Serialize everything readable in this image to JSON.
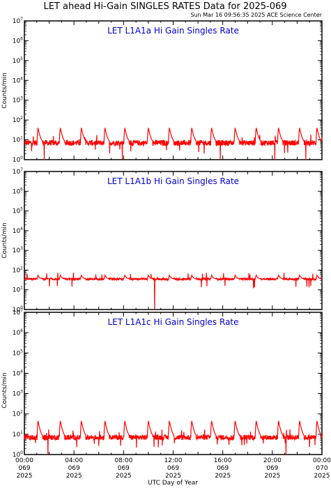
{
  "title": "LET ahead Hi-Gain SINGLES RATES Data for 2025-069",
  "timestamp": "Sun Mar 16 09:56:35 2025 ACE Science Center",
  "xlabel": "UTC Day of Year",
  "ylabel": "Counts/min",
  "colors": {
    "series": "#ff0000",
    "label": "#0000cc",
    "axis": "#000000"
  },
  "x_ticks": [
    {
      "time": "00:00",
      "day": "069",
      "year": "2025"
    },
    {
      "time": "04:00",
      "day": "069",
      "year": "2025"
    },
    {
      "time": "08:00",
      "day": "069",
      "year": "2025"
    },
    {
      "time": "12:00",
      "day": "069",
      "year": "2025"
    },
    {
      "time": "16:00",
      "day": "069",
      "year": "2025"
    },
    {
      "time": "20:00",
      "day": "069",
      "year": "2025"
    },
    {
      "time": "00:00",
      "day": "070",
      "year": "2025"
    }
  ],
  "chart_data": [
    {
      "type": "line",
      "label": "LET L1A1a Hi Gain Singles Rate",
      "yscale": "log",
      "ylim": [
        1,
        10000000
      ],
      "xlim_hours": [
        0,
        24
      ],
      "baseline": 7,
      "noise": 0.32,
      "spike_peak": 40,
      "spike_hours": [
        1.1,
        2.9,
        4.6,
        6.5,
        8.1,
        10.0,
        11.7,
        13.5,
        15.1,
        17.0,
        18.7,
        20.5,
        22.2,
        23.6
      ],
      "drop_hours": [
        1.6,
        7.9,
        15.8,
        20.2,
        22.7
      ]
    },
    {
      "type": "line",
      "label": "LET L1A1b Hi Gain Singles Rate",
      "yscale": "log",
      "ylim": [
        1,
        10000000
      ],
      "xlim_hours": [
        0,
        24
      ],
      "baseline": 35,
      "noise": 0.12,
      "spike_peak": 55,
      "spike_hours": [
        1.1,
        2.9,
        4.6,
        6.5,
        8.1,
        10.0,
        11.7,
        13.5,
        15.1,
        17.0,
        18.7,
        20.5,
        22.2,
        23.6
      ],
      "drop_hours": [
        10.5
      ]
    },
    {
      "type": "line",
      "label": "LET L1A1c Hi Gain Singles Rate",
      "yscale": "log",
      "ylim": [
        1,
        10000000
      ],
      "xlim_hours": [
        0,
        24
      ],
      "baseline": 7,
      "noise": 0.3,
      "spike_peak": 45,
      "spike_hours": [
        1.1,
        2.9,
        4.6,
        6.5,
        8.1,
        10.0,
        11.7,
        13.5,
        15.1,
        17.0,
        18.7,
        20.5,
        22.2,
        23.6
      ],
      "drop_hours": [
        1.9,
        21.1
      ]
    }
  ]
}
